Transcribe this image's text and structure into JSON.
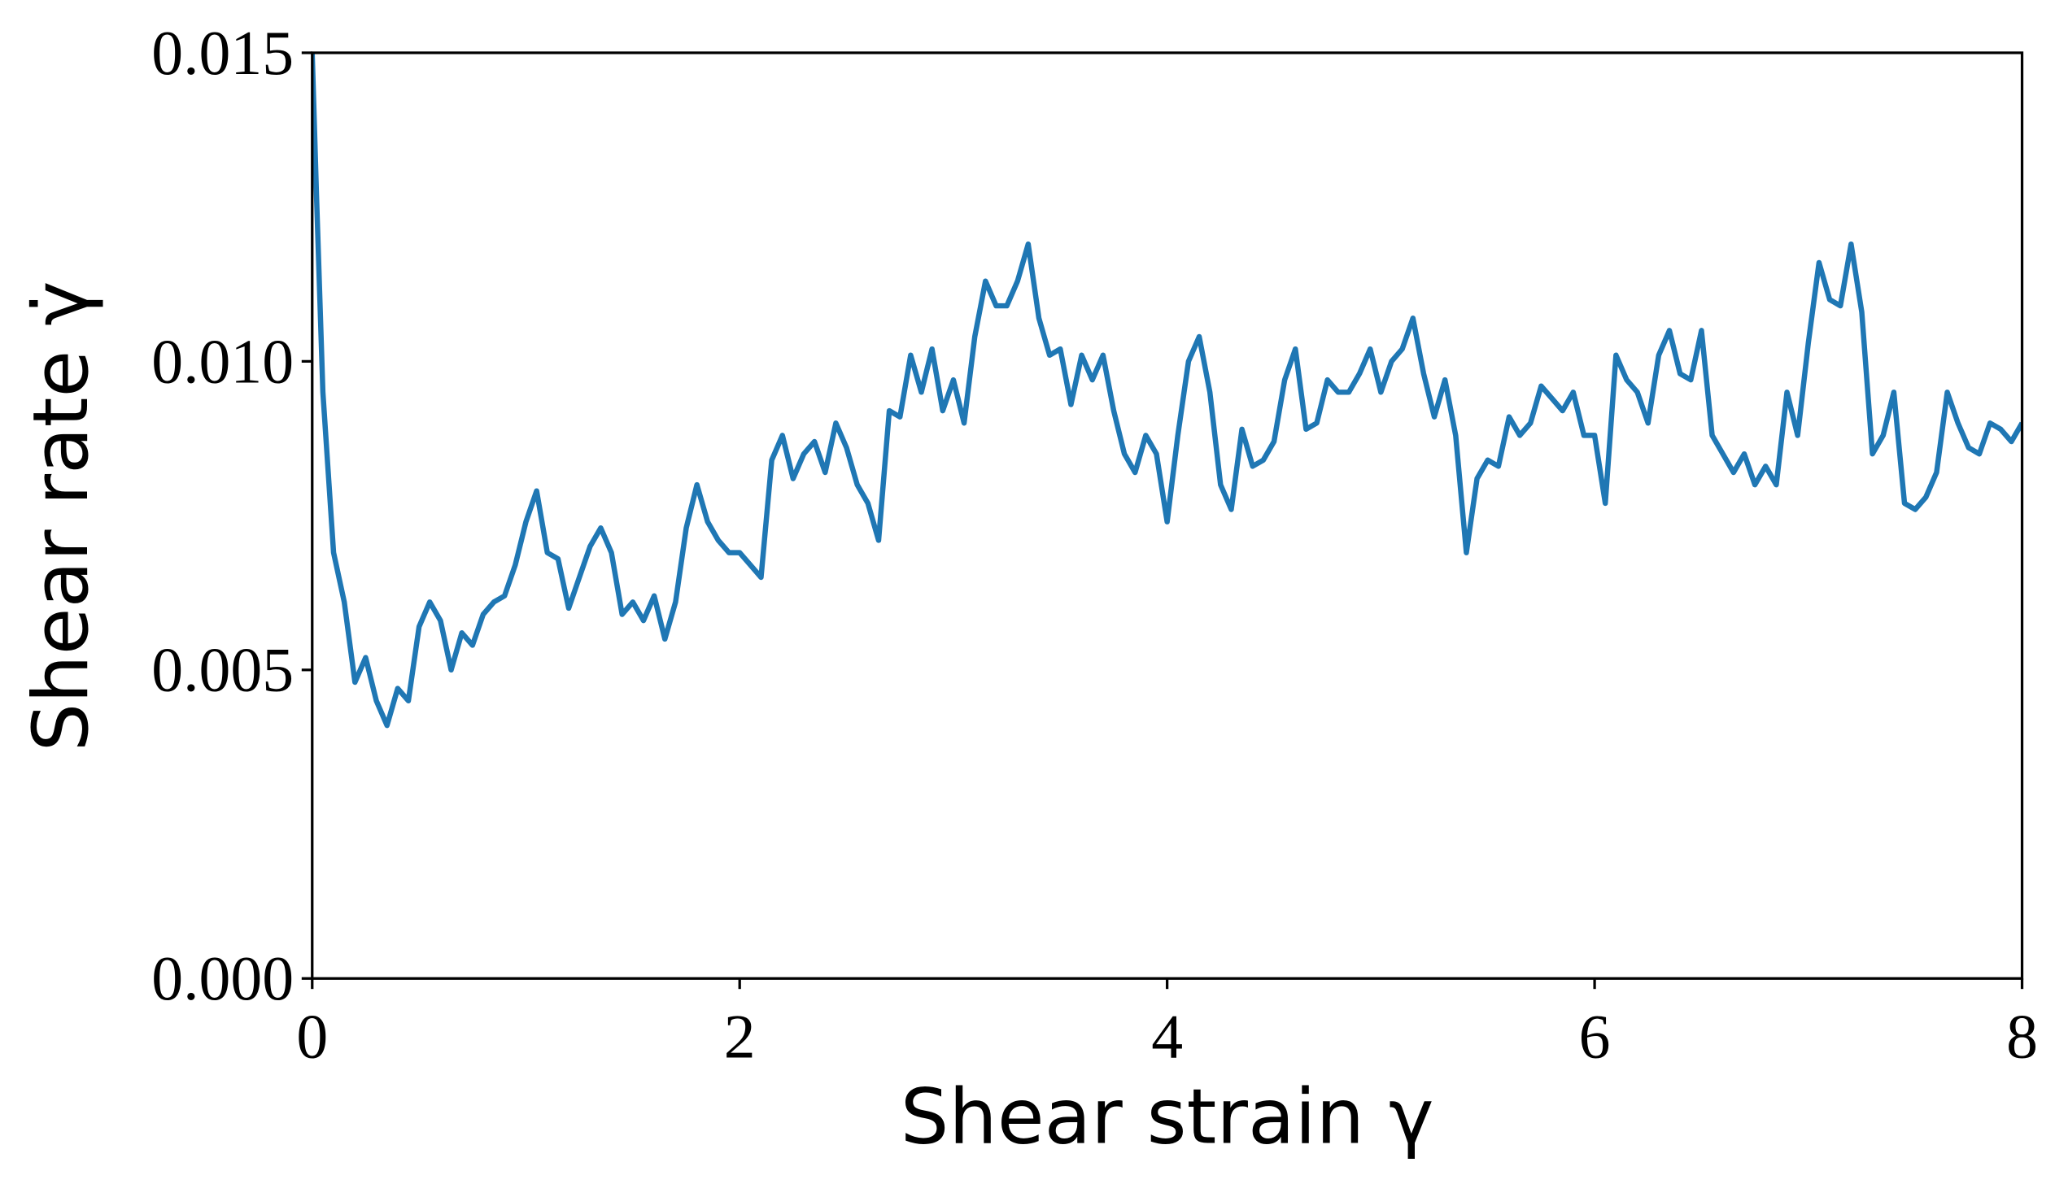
{
  "chart_data": {
    "type": "line",
    "xlabel": "Shear strain γ",
    "ylabel": "Shear rate γ̇",
    "xlim": [
      0,
      8
    ],
    "ylim": [
      0,
      0.015
    ],
    "xticks": [
      0,
      2,
      4,
      6,
      8
    ],
    "yticks": [
      {
        "value": 0,
        "label": "0.000"
      },
      0.005,
      {
        "value": 0.01,
        "label": "0.010"
      },
      0.015
    ],
    "series": [
      {
        "color": "#1f77b4",
        "x": [
          0,
          0.02,
          0.05,
          0.1,
          0.15,
          0.2,
          0.25,
          0.3,
          0.35,
          0.4,
          0.45,
          0.5,
          0.55,
          0.6,
          0.65,
          0.7,
          0.75,
          0.8,
          0.85,
          0.9,
          0.95,
          1.0,
          1.05,
          1.1,
          1.15,
          1.2,
          1.25,
          1.3,
          1.35,
          1.4,
          1.45,
          1.5,
          1.55,
          1.6,
          1.65,
          1.7,
          1.75,
          1.8,
          1.85,
          1.9,
          1.95,
          2.0,
          2.05,
          2.1,
          2.15,
          2.2,
          2.25,
          2.3,
          2.35,
          2.4,
          2.45,
          2.5,
          2.55,
          2.6,
          2.65,
          2.7,
          2.75,
          2.8,
          2.85,
          2.9,
          2.95,
          3.0,
          3.05,
          3.1,
          3.15,
          3.2,
          3.25,
          3.3,
          3.35,
          3.4,
          3.45,
          3.5,
          3.55,
          3.6,
          3.65,
          3.7,
          3.75,
          3.8,
          3.85,
          3.9,
          3.95,
          4.0,
          4.05,
          4.1,
          4.15,
          4.2,
          4.25,
          4.3,
          4.35,
          4.4,
          4.45,
          4.5,
          4.55,
          4.6,
          4.65,
          4.7,
          4.75,
          4.8,
          4.85,
          4.9,
          4.95,
          5.0,
          5.05,
          5.1,
          5.15,
          5.2,
          5.25,
          5.3,
          5.35,
          5.4,
          5.45,
          5.5,
          5.55,
          5.6,
          5.65,
          5.7,
          5.75,
          5.8,
          5.85,
          5.9,
          5.95,
          6.0,
          6.05,
          6.1,
          6.15,
          6.2,
          6.25,
          6.3,
          6.35,
          6.4,
          6.45,
          6.5,
          6.55,
          6.6,
          6.65,
          6.7,
          6.75,
          6.8,
          6.85,
          6.9,
          6.95,
          7.0,
          7.05,
          7.1,
          7.15,
          7.2,
          7.25,
          7.3,
          7.35,
          7.4,
          7.45,
          7.5,
          7.55,
          7.6,
          7.65,
          7.7,
          7.75,
          7.8,
          7.85,
          7.9,
          7.95,
          8.0
        ],
        "values": [
          0.015,
          0.0127,
          0.0095,
          0.0069,
          0.0061,
          0.0048,
          0.0052,
          0.0045,
          0.0041,
          0.0047,
          0.0045,
          0.0057,
          0.0061,
          0.0058,
          0.005,
          0.0056,
          0.0054,
          0.0059,
          0.0061,
          0.0062,
          0.0067,
          0.0074,
          0.0079,
          0.0069,
          0.0068,
          0.006,
          0.0065,
          0.007,
          0.0073,
          0.0069,
          0.0059,
          0.0061,
          0.0058,
          0.0062,
          0.0055,
          0.0061,
          0.0073,
          0.008,
          0.0074,
          0.0071,
          0.0069,
          0.0069,
          0.0067,
          0.0065,
          0.0084,
          0.0088,
          0.0081,
          0.0085,
          0.0087,
          0.0082,
          0.009,
          0.0086,
          0.008,
          0.0077,
          0.0071,
          0.0092,
          0.0091,
          0.0101,
          0.0095,
          0.0102,
          0.0092,
          0.0097,
          0.009,
          0.0104,
          0.0113,
          0.0109,
          0.0109,
          0.0113,
          0.0119,
          0.0107,
          0.0101,
          0.0102,
          0.0093,
          0.0101,
          0.0097,
          0.0101,
          0.0092,
          0.0085,
          0.0082,
          0.0088,
          0.0085,
          0.0074,
          0.0088,
          0.01,
          0.0104,
          0.0095,
          0.008,
          0.0076,
          0.0089,
          0.0083,
          0.0084,
          0.0087,
          0.0097,
          0.0102,
          0.0089,
          0.009,
          0.0097,
          0.0095,
          0.0095,
          0.0098,
          0.0102,
          0.0095,
          0.01,
          0.0102,
          0.0107,
          0.0098,
          0.0091,
          0.0097,
          0.0088,
          0.0069,
          0.0081,
          0.0084,
          0.0083,
          0.0091,
          0.0088,
          0.009,
          0.0096,
          0.0094,
          0.0092,
          0.0095,
          0.0088,
          0.0088,
          0.0077,
          0.0101,
          0.0097,
          0.0095,
          0.009,
          0.0101,
          0.0105,
          0.0098,
          0.0097,
          0.0105,
          0.0088,
          0.0085,
          0.0082,
          0.0085,
          0.008,
          0.0083,
          0.008,
          0.0095,
          0.0088,
          0.0103,
          0.0116,
          0.011,
          0.0109,
          0.0119,
          0.0108,
          0.0085,
          0.0088,
          0.0095,
          0.0077,
          0.0076,
          0.0078,
          0.0082,
          0.0095,
          0.009,
          0.0086,
          0.0085,
          0.009,
          0.0089,
          0.0087,
          0.009
        ]
      }
    ]
  }
}
